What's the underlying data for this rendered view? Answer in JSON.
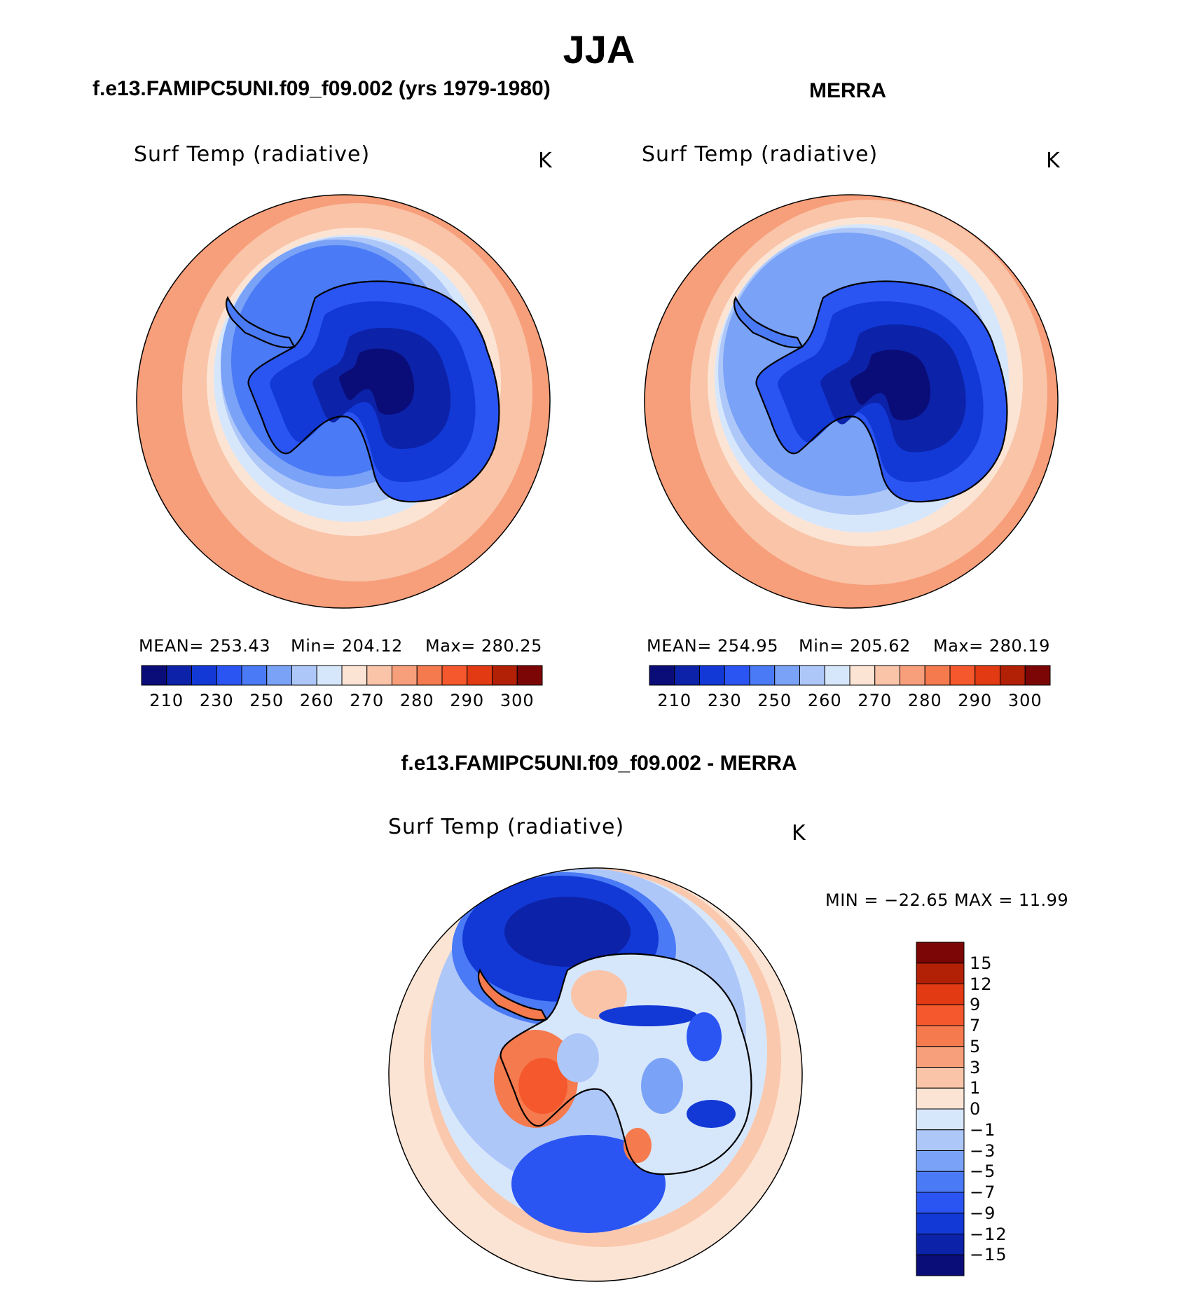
{
  "title": "JJA",
  "model_title": "f.e13.FAMIPC5UNI.f09_f09.002 (yrs 1979-1980)",
  "obs_title": "MERRA",
  "diff_title": "f.e13.FAMIPC5UNI.f09_f09.002 - MERRA",
  "variable": "Surf Temp (radiative)",
  "units": "K",
  "panels": {
    "model": {
      "mean": "MEAN= 253.43",
      "min": "Min= 204.12",
      "max": "Max= 280.25"
    },
    "obs": {
      "mean": "MEAN= 254.95",
      "min": "Min= 205.62",
      "max": "Max= 280.19"
    },
    "diff": {
      "minmax": "MIN = −22.65 MAX =  11.99"
    }
  },
  "colorbar_ticks": [
    "210",
    "230",
    "250",
    "260",
    "270",
    "280",
    "290",
    "300"
  ],
  "diff_ticks": [
    "15",
    "12",
    "9",
    "7",
    "5",
    "3",
    "1",
    "0",
    "−1",
    "−3",
    "−5",
    "−7",
    "−9",
    "−12",
    "−15"
  ],
  "colors": {
    "abs_palette": [
      "#0a0d78",
      "#0c22a8",
      "#1239d6",
      "#2a55f2",
      "#4a7af5",
      "#7aa2f7",
      "#aec7f9",
      "#d7e7fb",
      "#fce4d4",
      "#f9c4a8",
      "#f79e7a",
      "#f57a4e",
      "#f5582c",
      "#e23a12",
      "#b22006",
      "#7c0606"
    ],
    "diff_palette": [
      "#0a0d78",
      "#0c22a8",
      "#1239d6",
      "#2a55f2",
      "#4a7af5",
      "#7aa2f7",
      "#aec7f9",
      "#d7e7fb",
      "#fce4d4",
      "#f9c4a8",
      "#f79e7a",
      "#f57a4e",
      "#f5582c",
      "#e23a12",
      "#b22006",
      "#7c0606"
    ]
  },
  "chart_data": [
    {
      "type": "heatmap",
      "projection": "south-polar stereographic",
      "title": "f.e13.FAMIPC5UNI.f09_f09.002 (yrs 1979-1980)",
      "variable": "Surf Temp (radiative)",
      "units": "K",
      "mean": 253.43,
      "min": 204.12,
      "max": 280.25,
      "colorbar_levels": [
        205,
        210,
        220,
        230,
        240,
        250,
        255,
        260,
        265,
        270,
        275,
        280,
        285,
        290,
        295,
        300
      ],
      "colorbar_tick_labels": [
        210,
        230,
        250,
        260,
        270,
        280,
        290,
        300
      ]
    },
    {
      "type": "heatmap",
      "projection": "south-polar stereographic",
      "title": "MERRA",
      "variable": "Surf Temp (radiative)",
      "units": "K",
      "mean": 254.95,
      "min": 205.62,
      "max": 280.19,
      "colorbar_levels": [
        205,
        210,
        220,
        230,
        240,
        250,
        255,
        260,
        265,
        270,
        275,
        280,
        285,
        290,
        295,
        300
      ],
      "colorbar_tick_labels": [
        210,
        230,
        250,
        260,
        270,
        280,
        290,
        300
      ]
    },
    {
      "type": "heatmap",
      "projection": "south-polar stereographic",
      "title": "f.e13.FAMIPC5UNI.f09_f09.002 - MERRA",
      "variable": "Surf Temp (radiative)",
      "units": "K",
      "min": -22.65,
      "max": 11.99,
      "colorbar_levels": [
        -15,
        -12,
        -9,
        -7,
        -5,
        -3,
        -1,
        0,
        1,
        3,
        5,
        7,
        9,
        12,
        15
      ],
      "colorbar_tick_labels": [
        15,
        12,
        9,
        7,
        5,
        3,
        1,
        0,
        -1,
        -3,
        -5,
        -7,
        -9,
        -12,
        -15
      ]
    }
  ]
}
